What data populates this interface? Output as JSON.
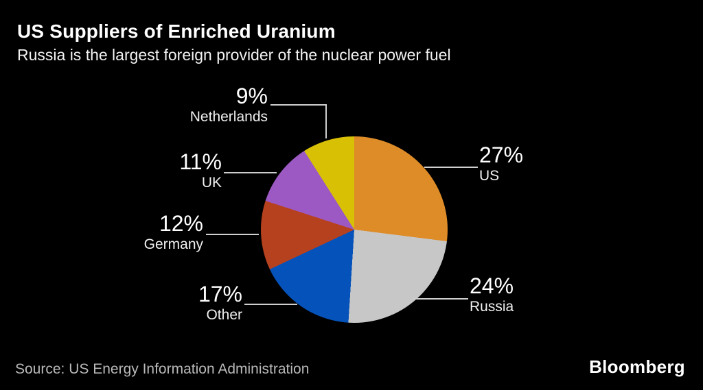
{
  "header": {
    "title": "US Suppliers of Enriched Uranium",
    "subtitle": "Russia is the largest foreign provider of the nuclear power fuel"
  },
  "footer": {
    "source": "Source: US Energy Information Administration",
    "brand": "Bloomberg"
  },
  "chart_data": {
    "type": "pie",
    "title": "US Suppliers of Enriched Uranium",
    "subtitle": "Russia is the largest foreign provider of the nuclear power fuel",
    "source": "US Energy Information Administration",
    "start_angle_deg": 0,
    "direction": "clockwise",
    "units": "%",
    "slices": [
      {
        "label": "US",
        "value": 27,
        "color": "#de8c28"
      },
      {
        "label": "Russia",
        "value": 24,
        "color": "#c7c7c7"
      },
      {
        "label": "Other",
        "value": 17,
        "color": "#0553ba"
      },
      {
        "label": "Germany",
        "value": 12,
        "color": "#b6411f"
      },
      {
        "label": "UK",
        "value": 11,
        "color": "#9c59c4"
      },
      {
        "label": "Netherlands",
        "value": 9,
        "color": "#d8c105"
      }
    ],
    "background_color": "#000000",
    "legend": "none",
    "label_style": "external callouts with percent and name"
  }
}
